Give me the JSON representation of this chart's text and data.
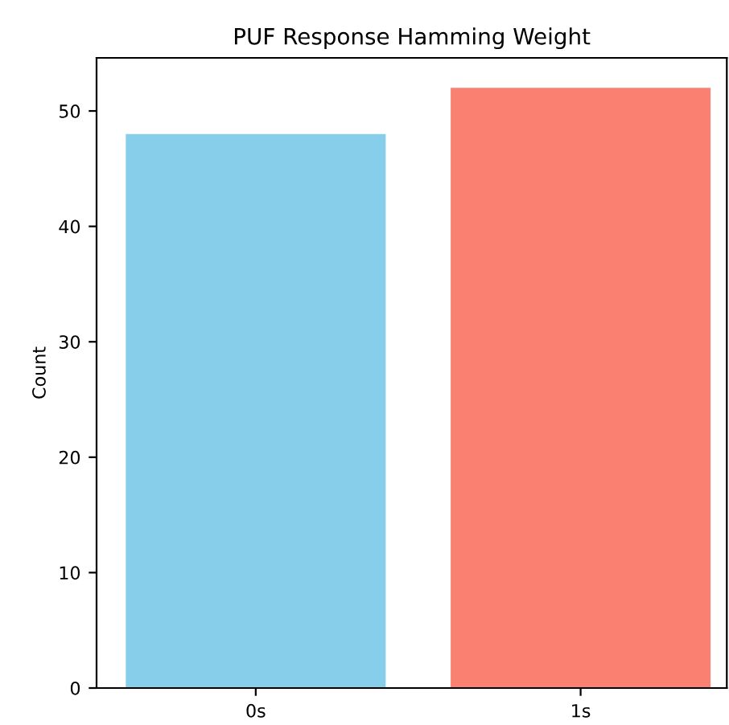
{
  "chart_data": {
    "type": "bar",
    "title": "PUF Response Hamming Weight",
    "ylabel": "Count",
    "categories": [
      "0s",
      "1s"
    ],
    "values": [
      48,
      52
    ],
    "colors": [
      "#87ceeb",
      "#fa8072"
    ],
    "ylim": [
      0,
      54.6
    ],
    "yticks": [
      0,
      10,
      20,
      30,
      40,
      50
    ],
    "grid": false
  }
}
